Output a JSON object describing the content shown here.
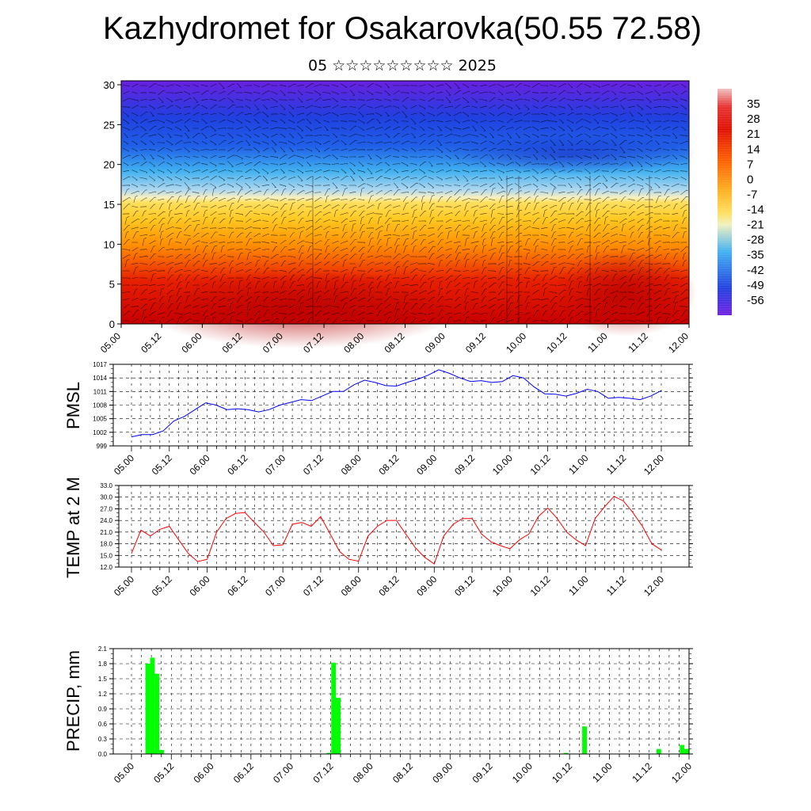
{
  "header": {
    "title": "Kazhydromet for Osakarovka(50.55 72.58)",
    "subtitle": "05 ☆☆☆☆☆☆☆☆☆ 2025"
  },
  "chart_data": [
    {
      "type": "heatmap",
      "name": "vertical temperature / wind cross-section",
      "x_tick_labels": [
        "05.00",
        "05.12",
        "06.00",
        "06.12",
        "07.00",
        "07.12",
        "08.00",
        "08.12",
        "09.00",
        "09.12",
        "10.00",
        "10.12",
        "11.00",
        "11.12",
        "12.00"
      ],
      "y_tick_labels": [
        "0",
        "5",
        "10",
        "15",
        "20",
        "25",
        "30"
      ],
      "ylim": [
        0,
        30.5
      ],
      "colorbar_labels": [
        "35",
        "28",
        "21",
        "14",
        "7",
        "0",
        "-7",
        "-14",
        "-21",
        "-28",
        "-35",
        "-42",
        "-49",
        "-56"
      ],
      "colorbar_range": [
        -63,
        42
      ],
      "colors": {
        "hot": "#c80000",
        "warm": "#ff8c00",
        "mild": "#ffe060",
        "cool": "#40b0f0",
        "cold": "#2040e0",
        "coldest": "#6a20e0"
      },
      "overlay": "wind barbs (black)"
    },
    {
      "type": "line",
      "ylabel": "PMSL",
      "y_tick_labels": [
        "999",
        "1002",
        "1005",
        "1008",
        "1011",
        "1014",
        "1017"
      ],
      "ylim": [
        999,
        1017
      ],
      "x_tick_labels": [
        "05.00",
        "05.12",
        "06.00",
        "06.12",
        "07.00",
        "07.12",
        "08.00",
        "08.12",
        "09.00",
        "09.12",
        "10.00",
        "10.12",
        "11.00",
        "11.12",
        "12.00"
      ],
      "series": [
        {
          "color": "#0000ff",
          "values": [
            1001.0,
            1001.5,
            1001.5,
            1002.3,
            1004.5,
            1005.5,
            1007.0,
            1008.5,
            1008.0,
            1007.0,
            1007.2,
            1007.0,
            1006.5,
            1007.0,
            1008.0,
            1008.6,
            1009.2,
            1009.0,
            1010.0,
            1011.0,
            1011.0,
            1012.5,
            1013.5,
            1013.0,
            1012.3,
            1012.2,
            1013.0,
            1013.7,
            1014.6,
            1015.8,
            1015.0,
            1014.0,
            1013.2,
            1013.4,
            1013.0,
            1013.2,
            1014.5,
            1014.0,
            1012.0,
            1010.5,
            1010.4,
            1010.0,
            1010.6,
            1011.5,
            1011.0,
            1009.5,
            1009.7,
            1009.5,
            1009.2,
            1010.0,
            1011.2
          ]
        }
      ]
    },
    {
      "type": "line",
      "ylabel": "TEMP at 2 M",
      "y_tick_labels": [
        "12.0",
        "15.0",
        "18.0",
        "21.0",
        "24.0",
        "27.0",
        "30.0",
        "33.0"
      ],
      "ylim": [
        12,
        33
      ],
      "x_tick_labels": [
        "05.00",
        "05.12",
        "06.00",
        "06.12",
        "07.00",
        "07.12",
        "08.00",
        "08.12",
        "09.00",
        "09.12",
        "10.00",
        "10.12",
        "11.00",
        "11.12",
        "12.00"
      ],
      "series": [
        {
          "color": "#ff0000",
          "values": [
            15.5,
            21.5,
            20.0,
            21.7,
            22.5,
            19.0,
            15.5,
            13.4,
            14.0,
            21.0,
            24.5,
            25.8,
            26.0,
            23.5,
            21.0,
            17.5,
            17.7,
            23.0,
            23.5,
            22.5,
            25.0,
            20.5,
            16.0,
            14.0,
            13.5,
            20.0,
            22.5,
            24.0,
            24.0,
            20.5,
            17.0,
            14.5,
            12.8,
            20.0,
            23.0,
            24.5,
            24.5,
            20.5,
            18.5,
            17.5,
            16.7,
            19.0,
            20.5,
            25.0,
            27.2,
            24.5,
            21.0,
            19.0,
            17.5,
            24.5,
            27.5,
            30.2,
            29.0,
            26.0,
            22.5,
            18.0,
            16.4
          ]
        }
      ]
    },
    {
      "type": "bar",
      "ylabel": "PRECIP, mm",
      "y_tick_labels": [
        "0.0",
        "0.3",
        "0.6",
        "0.9",
        "1.2",
        "1.5",
        "1.8",
        "2.1"
      ],
      "ylim": [
        0,
        2.1
      ],
      "x_tick_labels": [
        "05.00",
        "05.12",
        "06.00",
        "06.12",
        "07.00",
        "07.12",
        "08.00",
        "08.12",
        "09.00",
        "09.12",
        "10.00",
        "10.12",
        "11.00",
        "11.12",
        "12.00"
      ],
      "color": "#00ff00",
      "values": [
        0,
        0,
        0,
        1.8,
        1.92,
        1.6,
        0.08,
        0,
        0,
        0,
        0,
        0,
        0,
        0,
        0,
        0,
        0,
        0,
        0,
        0,
        0,
        0,
        0,
        0,
        0,
        0,
        0,
        0,
        0,
        0,
        0,
        0,
        0,
        0,
        0,
        0,
        0,
        0,
        0,
        0,
        0,
        0,
        0.02,
        1.82,
        1.12,
        0,
        0,
        0,
        0,
        0,
        0,
        0,
        0,
        0,
        0,
        0,
        0,
        0,
        0,
        0,
        0,
        0,
        0,
        0,
        0,
        0,
        0,
        0,
        0,
        0,
        0,
        0,
        0,
        0,
        0,
        0,
        0,
        0,
        0,
        0,
        0,
        0,
        0,
        0,
        0,
        0,
        0,
        0,
        0,
        0,
        0,
        0,
        0,
        0.02,
        0,
        0,
        0,
        0.55,
        0,
        0,
        0,
        0,
        0,
        0,
        0,
        0,
        0,
        0,
        0,
        0,
        0,
        0,
        0,
        0.1,
        0,
        0,
        0,
        0,
        0.18,
        0.1
      ]
    }
  ]
}
